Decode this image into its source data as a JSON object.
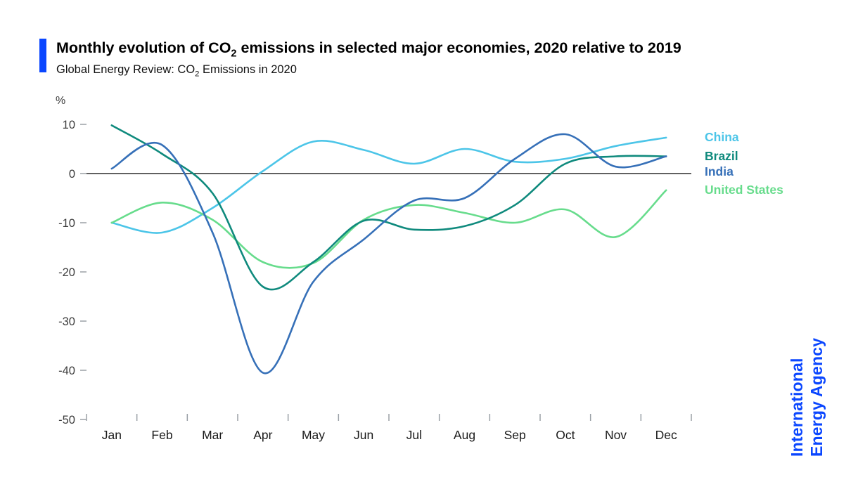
{
  "accent_color": "#0a46ff",
  "header": {
    "title_prefix": "Monthly evolution of CO",
    "title_sub": "2",
    "title_suffix": " emissions in selected major economies, 2020 relative to 2019",
    "subtitle_prefix": "Global Energy Review: CO",
    "subtitle_sub": "2",
    "subtitle_suffix": " Emissions in 2020"
  },
  "branding": {
    "line1": "International",
    "line2": "Energy Agency"
  },
  "chart_data": {
    "type": "line",
    "title": "Monthly evolution of CO2 emissions in selected major economies, 2020 relative to 2019",
    "subtitle": "Global Energy Review: CO2 Emissions in 2020",
    "unit_label": "%",
    "x": [
      "Jan",
      "Feb",
      "Mar",
      "Apr",
      "May",
      "Jun",
      "Jul",
      "Aug",
      "Sep",
      "Oct",
      "Nov",
      "Dec"
    ],
    "ylim": [
      -50,
      10
    ],
    "yticks": [
      10,
      0,
      -10,
      -20,
      -30,
      -40,
      -50
    ],
    "grid": false,
    "zero_line": true,
    "legend_position": "right",
    "series": [
      {
        "name": "China",
        "color": "#4cc5e8",
        "values": [
          -10,
          -12,
          -7,
          0.5,
          6.5,
          4.8,
          2,
          5,
          2.4,
          3,
          5.6,
          7.3
        ]
      },
      {
        "name": "Brazil",
        "color": "#0f8a7d",
        "values": [
          9.8,
          4,
          -4,
          -23,
          -18,
          -9.6,
          -11.4,
          -10.7,
          -6.4,
          2,
          3.5,
          3.5
        ]
      },
      {
        "name": "India",
        "color": "#3670b8",
        "values": [
          1,
          5.8,
          -12,
          -40.5,
          -22,
          -13.4,
          -5.5,
          -5,
          3,
          8,
          1.4,
          3.5
        ]
      },
      {
        "name": "United States",
        "color": "#67dc8c",
        "values": [
          -10,
          -5.9,
          -9.4,
          -18,
          -18.2,
          -9.4,
          -6.4,
          -8,
          -10,
          -7.3,
          -12.9,
          -3.4
        ]
      }
    ]
  }
}
